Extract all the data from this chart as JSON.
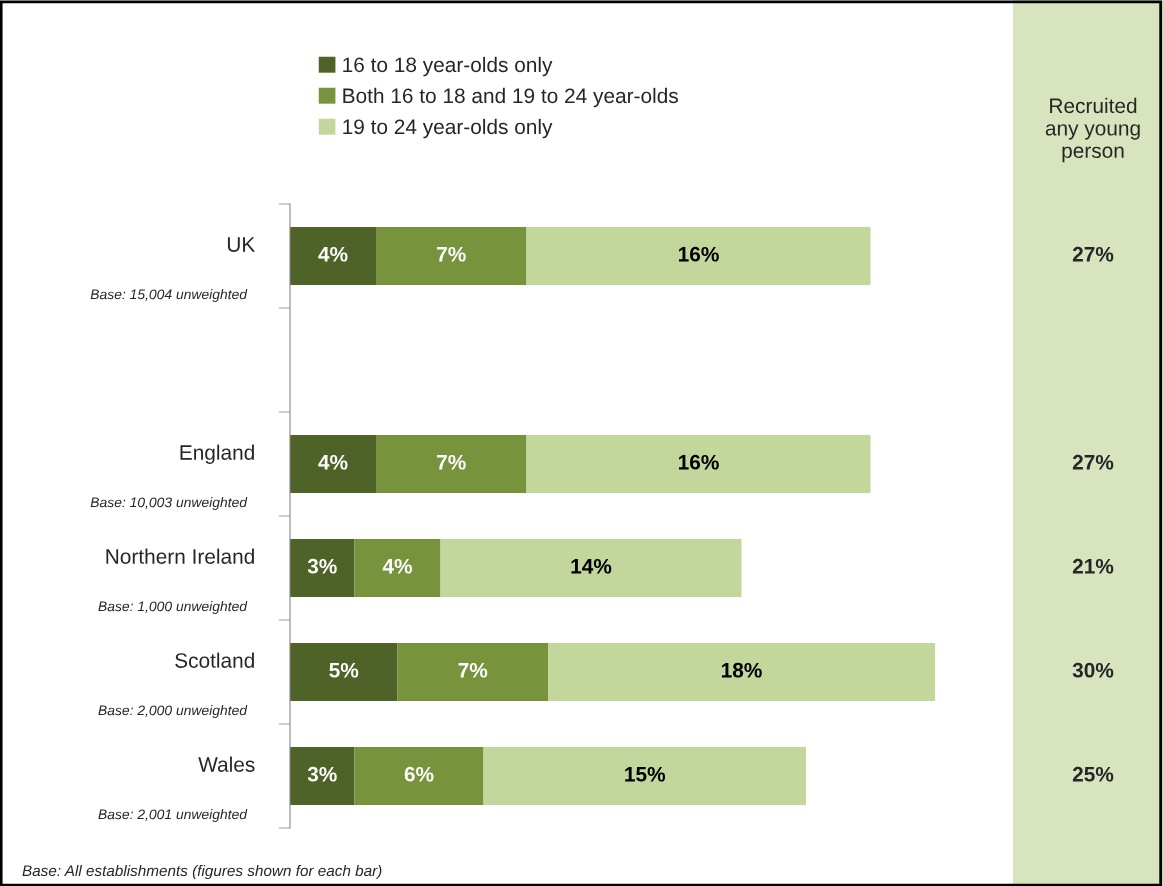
{
  "chart_data": {
    "type": "bar",
    "orientation": "horizontal",
    "stacked": true,
    "legend": "top",
    "grid": false,
    "categories": [
      "UK",
      null,
      "England",
      "Northern Ireland",
      "Scotland",
      "Wales"
    ],
    "series": [
      {
        "name": "16 to 18 year-olds only",
        "color": "#4f6228",
        "values": [
          4,
          null,
          4,
          3,
          5,
          3
        ],
        "value_labels": [
          "4%",
          null,
          "4%",
          "3%",
          "5%",
          "3%"
        ]
      },
      {
        "name": "Both 16 to 18 and 19 to 24 year-olds",
        "color": "#77933c",
        "values": [
          7,
          null,
          7,
          4,
          7,
          6
        ],
        "value_labels": [
          "7%",
          null,
          "7%",
          "4%",
          "7%",
          "6%"
        ]
      },
      {
        "name": "19 to 24 year-olds only",
        "color": "#c3d69b",
        "values": [
          16,
          null,
          16,
          14,
          18,
          15
        ],
        "value_labels": [
          "16%",
          null,
          "16%",
          "14%",
          "18%",
          "15%"
        ]
      }
    ],
    "annotations": [
      "Recruited\nany young\nperson",
      "Base: 15,004 unweighted",
      "Base: 10,003 unweighted",
      "Base: 1,000 unweighted",
      "Base: 2,000 unweighted",
      "Base: 2,001 unweighted",
      "27%",
      "27%",
      "21%",
      "30%",
      "25%",
      "Base: All establishments (figures shown for each bar)"
    ]
  }
}
